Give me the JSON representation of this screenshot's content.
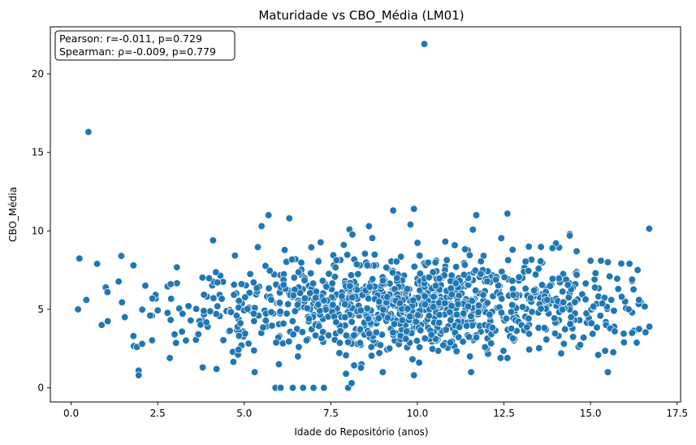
{
  "chart_data": {
    "type": "scatter",
    "title": "Maturidade vs CBO_Média (LM01)",
    "xlabel": "Idade do Repositório (anos)",
    "ylabel": "CBO_Média",
    "xlim": [
      -0.6,
      17.6
    ],
    "ylim": [
      -0.9,
      23.0
    ],
    "xticks": [
      0.0,
      2.5,
      5.0,
      7.5,
      10.0,
      12.5,
      15.0,
      17.5
    ],
    "xtick_labels": [
      "0.0",
      "2.5",
      "5.0",
      "7.5",
      "10.0",
      "12.5",
      "15.0",
      "17.5"
    ],
    "yticks": [
      0,
      5,
      10,
      15,
      20
    ],
    "ytick_labels": [
      "0",
      "5",
      "10",
      "15",
      "20"
    ],
    "grid": false,
    "legend": "none",
    "annotation": {
      "lines": [
        "Pearson: r=-0.011, p=0.729",
        "Spearman: ρ=-0.009, p=0.779"
      ],
      "placement": "top-left"
    },
    "marker_color": "#1f77b4",
    "outliers": [
      {
        "x": 10.2,
        "y": 21.9
      },
      {
        "x": 0.5,
        "y": 16.3
      }
    ],
    "notable_points": [
      {
        "x": 0.2,
        "y": 5.0
      },
      {
        "x": 0.75,
        "y": 7.9
      },
      {
        "x": 1.0,
        "y": 6.4
      },
      {
        "x": 1.05,
        "y": 6.1
      },
      {
        "x": 1.45,
        "y": 8.4
      },
      {
        "x": 1.55,
        "y": 4.5
      },
      {
        "x": 1.8,
        "y": 7.8
      },
      {
        "x": 1.8,
        "y": 3.3
      },
      {
        "x": 1.9,
        "y": 2.6
      },
      {
        "x": 1.95,
        "y": 1.1
      },
      {
        "x": 1.95,
        "y": 0.8
      },
      {
        "x": 2.05,
        "y": 2.8
      },
      {
        "x": 2.85,
        "y": 1.9
      },
      {
        "x": 3.8,
        "y": 1.3
      },
      {
        "x": 4.2,
        "y": 1.2
      },
      {
        "x": 4.1,
        "y": 9.4
      },
      {
        "x": 5.3,
        "y": 1.0
      },
      {
        "x": 5.9,
        "y": 0.0
      },
      {
        "x": 6.05,
        "y": 0.0
      },
      {
        "x": 6.4,
        "y": 0.0
      },
      {
        "x": 6.7,
        "y": 0.0
      },
      {
        "x": 7.0,
        "y": 0.0
      },
      {
        "x": 7.3,
        "y": 0.0
      },
      {
        "x": 8.0,
        "y": 0.0
      },
      {
        "x": 8.1,
        "y": 0.3
      },
      {
        "x": 6.0,
        "y": 1.5
      },
      {
        "x": 9.0,
        "y": 1.0
      },
      {
        "x": 9.9,
        "y": 0.8
      },
      {
        "x": 5.5,
        "y": 10.3
      },
      {
        "x": 5.7,
        "y": 11.0
      },
      {
        "x": 6.3,
        "y": 10.8
      },
      {
        "x": 9.3,
        "y": 11.3
      },
      {
        "x": 9.9,
        "y": 11.4
      },
      {
        "x": 9.8,
        "y": 10.4
      },
      {
        "x": 8.6,
        "y": 10.3
      },
      {
        "x": 11.7,
        "y": 11.0
      },
      {
        "x": 12.6,
        "y": 11.1
      },
      {
        "x": 14.4,
        "y": 9.8
      },
      {
        "x": 15.3,
        "y": 8.1
      },
      {
        "x": 15.7,
        "y": 3.6
      },
      {
        "x": 16.2,
        "y": 3.5
      },
      {
        "x": 16.7,
        "y": 3.9
      },
      {
        "x": 16.4,
        "y": 5.6
      },
      {
        "x": 16.2,
        "y": 6.8
      },
      {
        "x": 16.2,
        "y": 6.9
      },
      {
        "x": 16.0,
        "y": 5.5
      },
      {
        "x": 15.9,
        "y": 5.8
      },
      {
        "x": 16.2,
        "y": 4.8
      },
      {
        "x": 16.1,
        "y": 5.0
      },
      {
        "x": 15.55,
        "y": 7.1
      },
      {
        "x": 15.5,
        "y": 8.0
      },
      {
        "x": 15.8,
        "y": 6.3
      },
      {
        "x": 15.0,
        "y": 8.1
      },
      {
        "x": 14.6,
        "y": 8.7
      },
      {
        "x": 14.8,
        "y": 3.2
      },
      {
        "x": 15.5,
        "y": 1.0
      },
      {
        "x": 15.6,
        "y": 5.6
      },
      {
        "x": 12.4,
        "y": 1.9
      },
      {
        "x": 12.6,
        "y": 1.9
      },
      {
        "x": 11.55,
        "y": 1.0
      },
      {
        "x": 14.4,
        "y": 9.7
      },
      {
        "x": 14.0,
        "y": 9.2
      },
      {
        "x": 13.9,
        "y": 8.9
      },
      {
        "x": 14.6,
        "y": 7.2
      }
    ],
    "cluster": {
      "seed": 7,
      "count": 1050,
      "x_min": 0.2,
      "x_max": 16.7,
      "x_mean": 9.6,
      "x_sd": 3.3,
      "y_mean": 5.3,
      "y_sd": 1.55,
      "y_min": 0.0,
      "y_max": 11.4
    }
  }
}
